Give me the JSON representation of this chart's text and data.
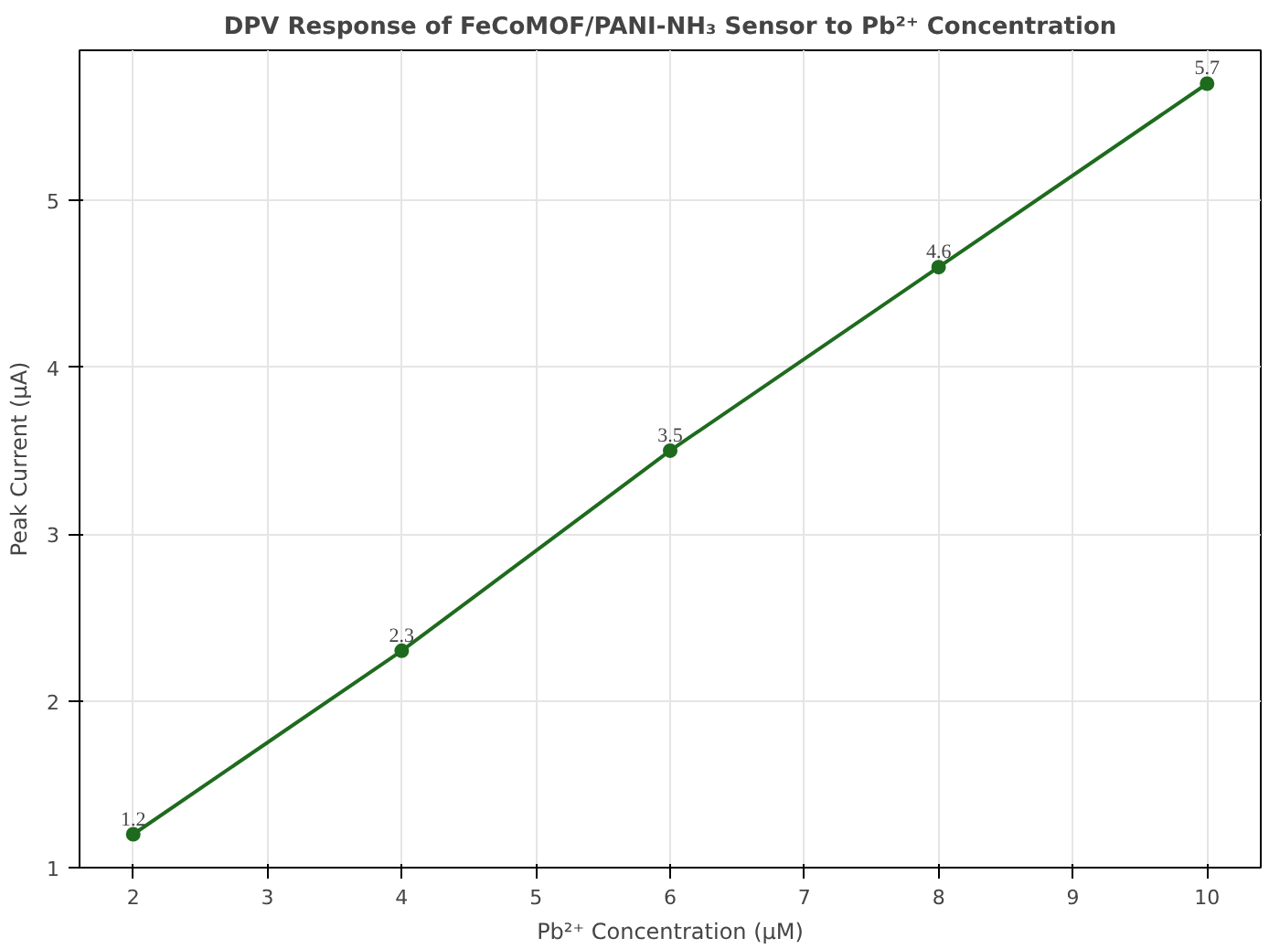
{
  "chart_data": {
    "type": "line",
    "title": "DPV Response of FeCoMOF/PANI-NH₃ Sensor to Pb²⁺ Concentration",
    "xlabel": "Pb²⁺ Concentration (µM)",
    "ylabel": "Peak Current (µA)",
    "x": [
      2,
      4,
      6,
      8,
      10
    ],
    "series": [
      {
        "color": "#1e6b1e",
        "values": [
          1.2,
          2.3,
          3.5,
          4.6,
          5.7
        ]
      }
    ],
    "xlim": [
      1.6,
      10.4
    ],
    "ylim": [
      1.0,
      5.9
    ],
    "xticks": [
      2,
      3,
      4,
      5,
      6,
      7,
      8,
      9,
      10
    ],
    "yticks": [
      1,
      2,
      3,
      4,
      5
    ],
    "grid": true,
    "marker": "circle",
    "line_style": "solid",
    "data_labels": true
  }
}
